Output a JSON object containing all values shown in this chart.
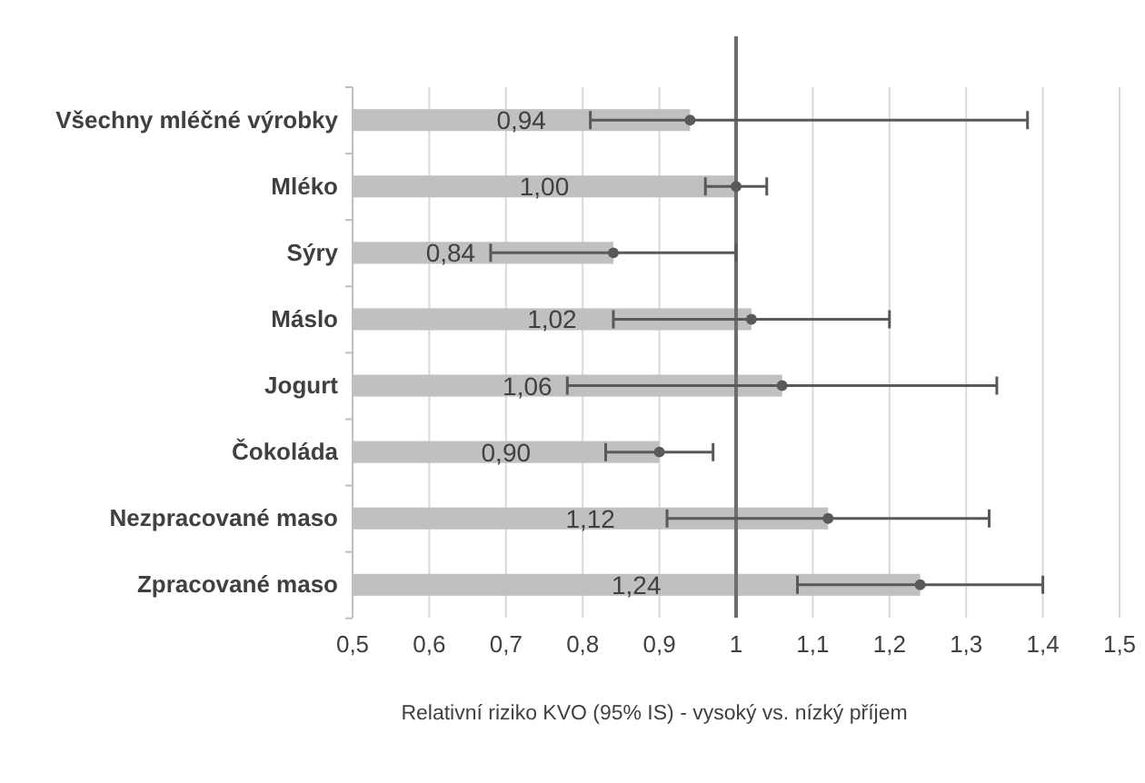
{
  "chart_data": {
    "type": "bar",
    "orientation": "horizontal",
    "xlabel": "Relativní riziko KVO (95% IS) - vysoký vs. nízký příjem",
    "categories": [
      "Všechny mléčné výrobky",
      "Mléko",
      "Sýry",
      "Máslo",
      "Jogurt",
      "Čokoláda",
      "Nezpracované maso",
      "Zpracované maso"
    ],
    "series": [
      {
        "color": "#c0c0c0",
        "values": [
          0.94,
          1.0,
          0.84,
          1.02,
          1.06,
          0.9,
          1.12,
          1.24
        ]
      },
      {
        "type": "scatter",
        "color": "#595959",
        "marker": "circle",
        "values": [
          0.94,
          1.0,
          0.84,
          1.02,
          1.06,
          0.9,
          1.12,
          1.24
        ],
        "errors": [
          [
            0.81,
            1.38
          ],
          [
            0.96,
            1.04
          ],
          [
            0.68,
            1.0
          ],
          [
            0.84,
            1.2
          ],
          [
            0.78,
            1.34
          ],
          [
            0.83,
            0.97
          ],
          [
            0.91,
            1.33
          ],
          [
            1.08,
            1.4
          ]
        ]
      }
    ],
    "value_labels": [
      "0,94",
      "1,00",
      "0,84",
      "1,02",
      "1,06",
      "0,90",
      "1,12",
      "1,24"
    ],
    "xlim": [
      0.5,
      1.5
    ],
    "xticks": [
      {
        "value": 0.5,
        "label": "0,5"
      },
      {
        "value": 0.6,
        "label": "0,6"
      },
      {
        "value": 0.7,
        "label": "0,7"
      },
      {
        "value": 0.8,
        "label": "0,8"
      },
      {
        "value": 0.9,
        "label": "0,9"
      },
      1,
      {
        "value": 1.1,
        "label": "1,1"
      },
      {
        "value": 1.2,
        "label": "1,2"
      },
      {
        "value": 1.3,
        "label": "1,3"
      },
      {
        "value": 1.4,
        "label": "1,4"
      },
      {
        "value": 1.5,
        "label": "1,5"
      }
    ],
    "grid": "x",
    "ref_lines": [
      {
        "axis": "x",
        "value": 1,
        "color": "#6d6d6d"
      }
    ]
  }
}
